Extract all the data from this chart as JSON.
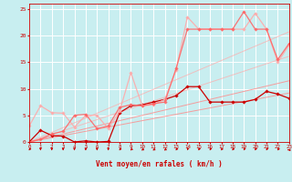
{
  "background_color": "#c8eef0",
  "grid_color": "#b0d8dc",
  "x_ticks": [
    0,
    1,
    2,
    3,
    4,
    5,
    6,
    7,
    8,
    9,
    10,
    11,
    12,
    13,
    14,
    15,
    16,
    17,
    18,
    19,
    20,
    21,
    22,
    23
  ],
  "y_ticks": [
    0,
    5,
    10,
    15,
    20,
    25
  ],
  "xlabel": "Vent moyen/en rafales ( km/h )",
  "xlim": [
    0,
    23
  ],
  "ylim": [
    0,
    26
  ],
  "tick_label_color": "#cc0000",
  "axis_label_color": "#cc0000",
  "arrow_color": "#cc0000",
  "series": [
    {
      "x": [
        0,
        23
      ],
      "y": [
        0,
        9.2
      ],
      "color": "#ff8888",
      "lw": 0.7,
      "marker": null,
      "alpha": 0.8
    },
    {
      "x": [
        0,
        23
      ],
      "y": [
        0,
        11.5
      ],
      "color": "#ff8888",
      "lw": 0.7,
      "marker": null,
      "alpha": 0.8
    },
    {
      "x": [
        0,
        23
      ],
      "y": [
        0,
        16.1
      ],
      "color": "#ffaaaa",
      "lw": 0.7,
      "marker": null,
      "alpha": 0.7
    },
    {
      "x": [
        0,
        23
      ],
      "y": [
        0,
        20.7
      ],
      "color": "#ffaaaa",
      "lw": 0.7,
      "marker": null,
      "alpha": 0.7
    },
    {
      "x": [
        0,
        1,
        2,
        3,
        4,
        5,
        6,
        7,
        8,
        9,
        10,
        11,
        12,
        13,
        14,
        15,
        16,
        17,
        18,
        19,
        20,
        21,
        22,
        23
      ],
      "y": [
        0,
        2.2,
        1.2,
        1.1,
        0.0,
        0.2,
        0.0,
        0.1,
        5.5,
        6.8,
        7.0,
        7.5,
        8.0,
        8.7,
        10.4,
        10.4,
        7.5,
        7.5,
        7.5,
        7.5,
        8.0,
        9.5,
        9.0,
        8.2
      ],
      "color": "#cc0000",
      "lw": 0.9,
      "marker": "D",
      "ms": 1.8,
      "alpha": 1.0
    },
    {
      "x": [
        0,
        1,
        2,
        3,
        4,
        5,
        6,
        7,
        8,
        9,
        10,
        11,
        12,
        13,
        14,
        15,
        16,
        17,
        18,
        19,
        20,
        21,
        22,
        23
      ],
      "y": [
        3.0,
        6.8,
        5.5,
        5.4,
        2.8,
        5.0,
        5.0,
        2.5,
        5.8,
        13.0,
        6.8,
        7.0,
        8.0,
        13.5,
        23.5,
        21.2,
        21.2,
        21.2,
        21.2,
        21.2,
        24.2,
        21.2,
        15.0,
        18.2
      ],
      "color": "#ffaaaa",
      "lw": 0.9,
      "marker": "D",
      "ms": 1.8,
      "alpha": 0.9
    },
    {
      "x": [
        0,
        1,
        2,
        3,
        4,
        5,
        6,
        7,
        8,
        9,
        10,
        11,
        12,
        13,
        14,
        15,
        16,
        17,
        18,
        19,
        20,
        21,
        22,
        23
      ],
      "y": [
        0,
        0.5,
        1.5,
        2.0,
        5.0,
        5.2,
        2.5,
        3.0,
        6.5,
        7.0,
        6.8,
        7.2,
        7.5,
        13.8,
        21.2,
        21.2,
        21.2,
        21.2,
        21.2,
        24.5,
        21.2,
        21.2,
        15.5,
        18.5
      ],
      "color": "#ff6666",
      "lw": 0.9,
      "marker": "D",
      "ms": 1.8,
      "alpha": 0.9
    }
  ],
  "wind_angles": [
    200,
    180,
    180,
    180,
    180,
    180,
    180,
    180,
    200,
    210,
    220,
    220,
    220,
    200,
    190,
    195,
    195,
    200,
    200,
    195,
    195,
    195,
    200,
    270
  ]
}
